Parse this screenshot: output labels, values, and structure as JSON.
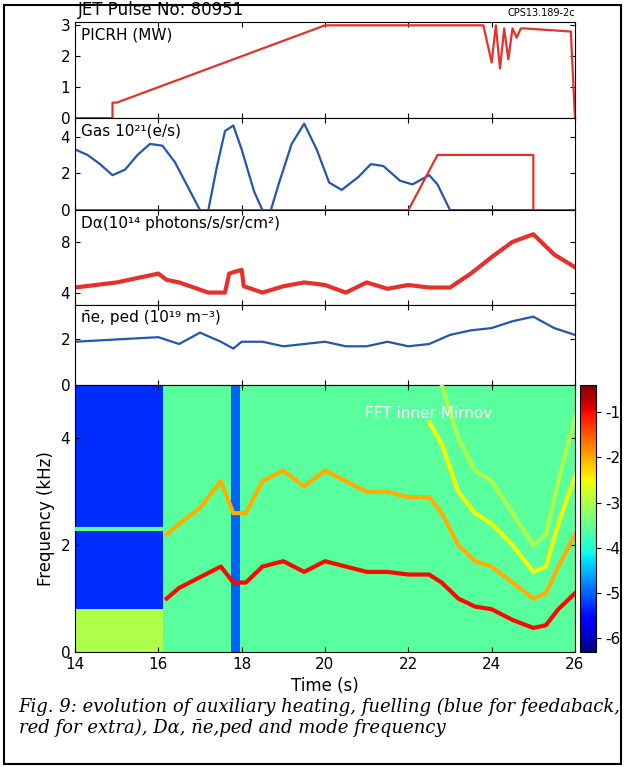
{
  "header": {
    "title": "JET Pulse No: 80951",
    "code": "CPS13.189-2c"
  },
  "caption": "Fig. 9: evolution of auxiliary heating, fuelling (blue for feedaback, red for extra), Dα, n̄e,ped and mode frequency",
  "chart_data": [
    {
      "type": "line",
      "label": "PICRH (MW)",
      "xlim": [
        14,
        26
      ],
      "xticks": [
        14,
        16,
        18,
        20,
        22,
        24,
        26
      ],
      "ylim": [
        0,
        3.1
      ],
      "yticks": [
        0,
        1,
        2,
        3
      ],
      "tick_labels": "y",
      "series": [
        {
          "color": "#e8302a",
          "x": [
            14,
            14.9,
            14.9,
            15,
            20,
            23.8,
            24.0,
            24.1,
            24.2,
            24.3,
            24.4,
            24.5,
            24.6,
            24.7,
            24.8,
            25.9,
            26.0
          ],
          "values": [
            0,
            0,
            0.5,
            0.5,
            3.0,
            3.0,
            1.8,
            3.0,
            1.6,
            2.9,
            1.9,
            2.9,
            2.6,
            2.9,
            2.9,
            2.8,
            0
          ]
        }
      ]
    },
    {
      "type": "line",
      "label": "Gas 10²¹(e/s)",
      "xlim": [
        14,
        26
      ],
      "xticks": [
        14,
        16,
        18,
        20,
        22,
        24,
        26
      ],
      "ylim": [
        0,
        5
      ],
      "yticks": [
        0,
        2,
        4
      ],
      "tick_labels": "y",
      "series": [
        {
          "color": "#2356b0",
          "x": [
            14.0,
            14.3,
            14.6,
            14.9,
            15.2,
            15.5,
            15.8,
            16.1,
            16.4,
            16.7,
            17.0,
            17.2,
            17.4,
            17.6,
            17.8,
            18.0,
            18.3,
            18.5,
            18.7,
            18.9,
            19.2,
            19.5,
            19.8,
            20.1,
            20.4,
            20.8,
            21.1,
            21.4,
            21.8,
            22.1,
            22.5,
            22.7,
            23.0,
            26.0
          ],
          "values": [
            3.3,
            3.0,
            2.5,
            1.9,
            2.2,
            3.0,
            3.6,
            3.5,
            2.6,
            1.3,
            0.0,
            0.0,
            2.3,
            4.3,
            4.6,
            3.3,
            1.0,
            0.0,
            0.0,
            1.5,
            3.6,
            4.7,
            3.3,
            1.5,
            1.1,
            1.8,
            2.5,
            2.4,
            1.6,
            1.4,
            1.9,
            1.4,
            0.0,
            0.0
          ]
        },
        {
          "color": "#e8302a",
          "x": [
            14,
            22.0,
            22.7,
            25.0,
            25.0,
            26
          ],
          "values": [
            0,
            0,
            3.0,
            3.0,
            0,
            0
          ]
        }
      ]
    },
    {
      "type": "line",
      "label": "Dα(10¹⁴ photons/s/sr/cm²)",
      "xlim": [
        14,
        26
      ],
      "xticks": [
        14,
        16,
        18,
        20,
        22,
        24,
        26
      ],
      "ylim": [
        3,
        10.5
      ],
      "yticks": [
        4,
        8
      ],
      "tick_labels": "y",
      "series": [
        {
          "color": "#e8302a",
          "x": [
            14,
            15,
            16,
            16.2,
            16.5,
            17.2,
            17.6,
            17.7,
            18.0,
            18.05,
            18.5,
            19.0,
            19.5,
            20,
            20.5,
            21,
            21.5,
            22,
            22.5,
            23,
            23.5,
            24,
            24.5,
            25.0,
            25.5,
            26
          ],
          "values": [
            4.4,
            4.8,
            5.5,
            5.0,
            4.8,
            4.0,
            4.0,
            5.5,
            5.8,
            4.5,
            4.0,
            4.5,
            4.8,
            4.6,
            4.0,
            4.8,
            4.3,
            4.6,
            4.4,
            4.4,
            5.5,
            6.8,
            8.0,
            8.6,
            7.0,
            6.0
          ]
        }
      ]
    },
    {
      "type": "line",
      "label": "n̄e, ped (10¹⁹ m⁻³)",
      "xlim": [
        14,
        26
      ],
      "xticks": [
        14,
        16,
        18,
        20,
        22,
        24,
        26
      ],
      "ylim": [
        0,
        3.5
      ],
      "yticks": [
        0,
        2
      ],
      "tick_labels": "y",
      "series": [
        {
          "color": "#2356b0",
          "x": [
            14,
            15,
            16,
            16.5,
            17,
            17.5,
            17.8,
            18,
            18.5,
            19,
            19.5,
            20,
            20.5,
            21,
            21.5,
            22,
            22.5,
            23,
            23.5,
            24,
            24.5,
            25,
            25.5,
            26
          ],
          "values": [
            1.9,
            2.0,
            2.1,
            1.8,
            2.3,
            1.9,
            1.6,
            1.9,
            1.9,
            1.7,
            1.8,
            1.9,
            1.7,
            1.7,
            1.9,
            1.7,
            1.8,
            2.2,
            2.4,
            2.5,
            2.8,
            3.0,
            2.5,
            2.2
          ]
        }
      ]
    },
    {
      "type": "heatmap",
      "annotation": "FFT inner Mirnov",
      "xlabel": "Time (s)",
      "ylabel": "Frequency (kHz)",
      "xlim": [
        14,
        26
      ],
      "xticks": [
        14,
        16,
        18,
        20,
        22,
        24,
        26
      ],
      "ylim": [
        0,
        5
      ],
      "yticks": [
        0,
        2,
        4
      ],
      "cells": [
        {
          "x": [
            14,
            16.1
          ],
          "y": [
            0.8,
            5
          ],
          "value": -5.3
        },
        {
          "x": [
            14,
            16.1
          ],
          "y": [
            0,
            0.8
          ],
          "value": -3.0
        },
        {
          "x": [
            16.1,
            26
          ],
          "y": [
            0,
            5
          ],
          "value": -3.6
        },
        {
          "x": [
            17.75,
            17.95
          ],
          "y": [
            0,
            5
          ],
          "value": -5.0
        }
      ],
      "modes": [
        {
          "x": [
            14,
            16.1
          ],
          "values": [
            2.3,
            2.3
          ],
          "value": -3.5
        },
        {
          "x": [
            16.2,
            16.5,
            17,
            17.5,
            17.8,
            18.1,
            18.5,
            19,
            19.5,
            20,
            20.5,
            21,
            21.5,
            22,
            22.5,
            22.8,
            23.2,
            23.6,
            24,
            24.5,
            25,
            25.3,
            25.6,
            26
          ],
          "values": [
            2.2,
            2.4,
            2.7,
            3.2,
            2.6,
            2.6,
            3.2,
            3.4,
            3.1,
            3.4,
            3.2,
            3.0,
            3.0,
            2.9,
            2.9,
            2.6,
            2.0,
            1.7,
            1.6,
            1.3,
            1.0,
            1.1,
            1.6,
            2.2
          ],
          "value": -2
        },
        {
          "x": [
            22.5,
            22.8,
            23.2,
            23.6,
            24,
            24.5,
            25,
            25.3,
            25.6,
            26
          ],
          "values": [
            4.3,
            3.9,
            3.0,
            2.6,
            2.4,
            2.0,
            1.5,
            1.6,
            2.4,
            3.3
          ],
          "value": -2.5
        },
        {
          "x": [
            22.8,
            23.2,
            23.6,
            24,
            24.5,
            25,
            25.3,
            25.6,
            26
          ],
          "values": [
            5.0,
            4.0,
            3.4,
            3.2,
            2.6,
            2.0,
            2.2,
            3.2,
            4.4
          ],
          "value": -3
        },
        {
          "x": [
            16.2,
            16.5,
            17,
            17.5,
            17.8,
            18.1,
            18.5,
            19,
            19.5,
            20,
            20.5,
            21,
            21.5,
            22,
            22.5,
            22.8,
            23.2,
            23.6,
            24,
            24.5,
            25,
            25.3,
            25.6,
            26
          ],
          "values": [
            1.0,
            1.2,
            1.4,
            1.6,
            1.3,
            1.3,
            1.6,
            1.7,
            1.5,
            1.7,
            1.6,
            1.5,
            1.5,
            1.45,
            1.45,
            1.3,
            1.0,
            0.85,
            0.8,
            0.6,
            0.45,
            0.5,
            0.8,
            1.1
          ],
          "value": -1
        }
      ],
      "colorbar": {
        "range": [
          -6.3,
          -0.4
        ],
        "ticks": [
          -1,
          -2,
          -3,
          -4,
          -5,
          -6
        ]
      }
    }
  ]
}
